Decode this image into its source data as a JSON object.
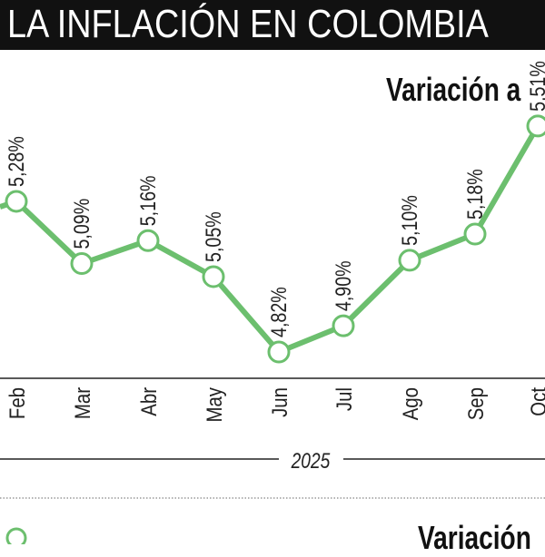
{
  "header": {
    "title": "LA INFLACIÓN EN COLOMBIA"
  },
  "chart_data": {
    "type": "line",
    "title": "Variación a",
    "categories": [
      "Feb",
      "Mar",
      "Abr",
      "May",
      "Jun",
      "Jul",
      "Ago",
      "Sep",
      "Oct"
    ],
    "values": [
      5.28,
      5.09,
      5.16,
      5.05,
      4.82,
      4.9,
      5.1,
      5.18,
      5.51
    ],
    "labels": [
      "5,28%",
      "5,09%",
      "5,16%",
      "5,05%",
      "4,82%",
      "4,90%",
      "5,10%",
      "5,18%",
      "5,51%"
    ],
    "year_label": "2025",
    "line_color": "#6cbf6e",
    "grid": false
  },
  "footer": {
    "next_title": "Variación"
  }
}
